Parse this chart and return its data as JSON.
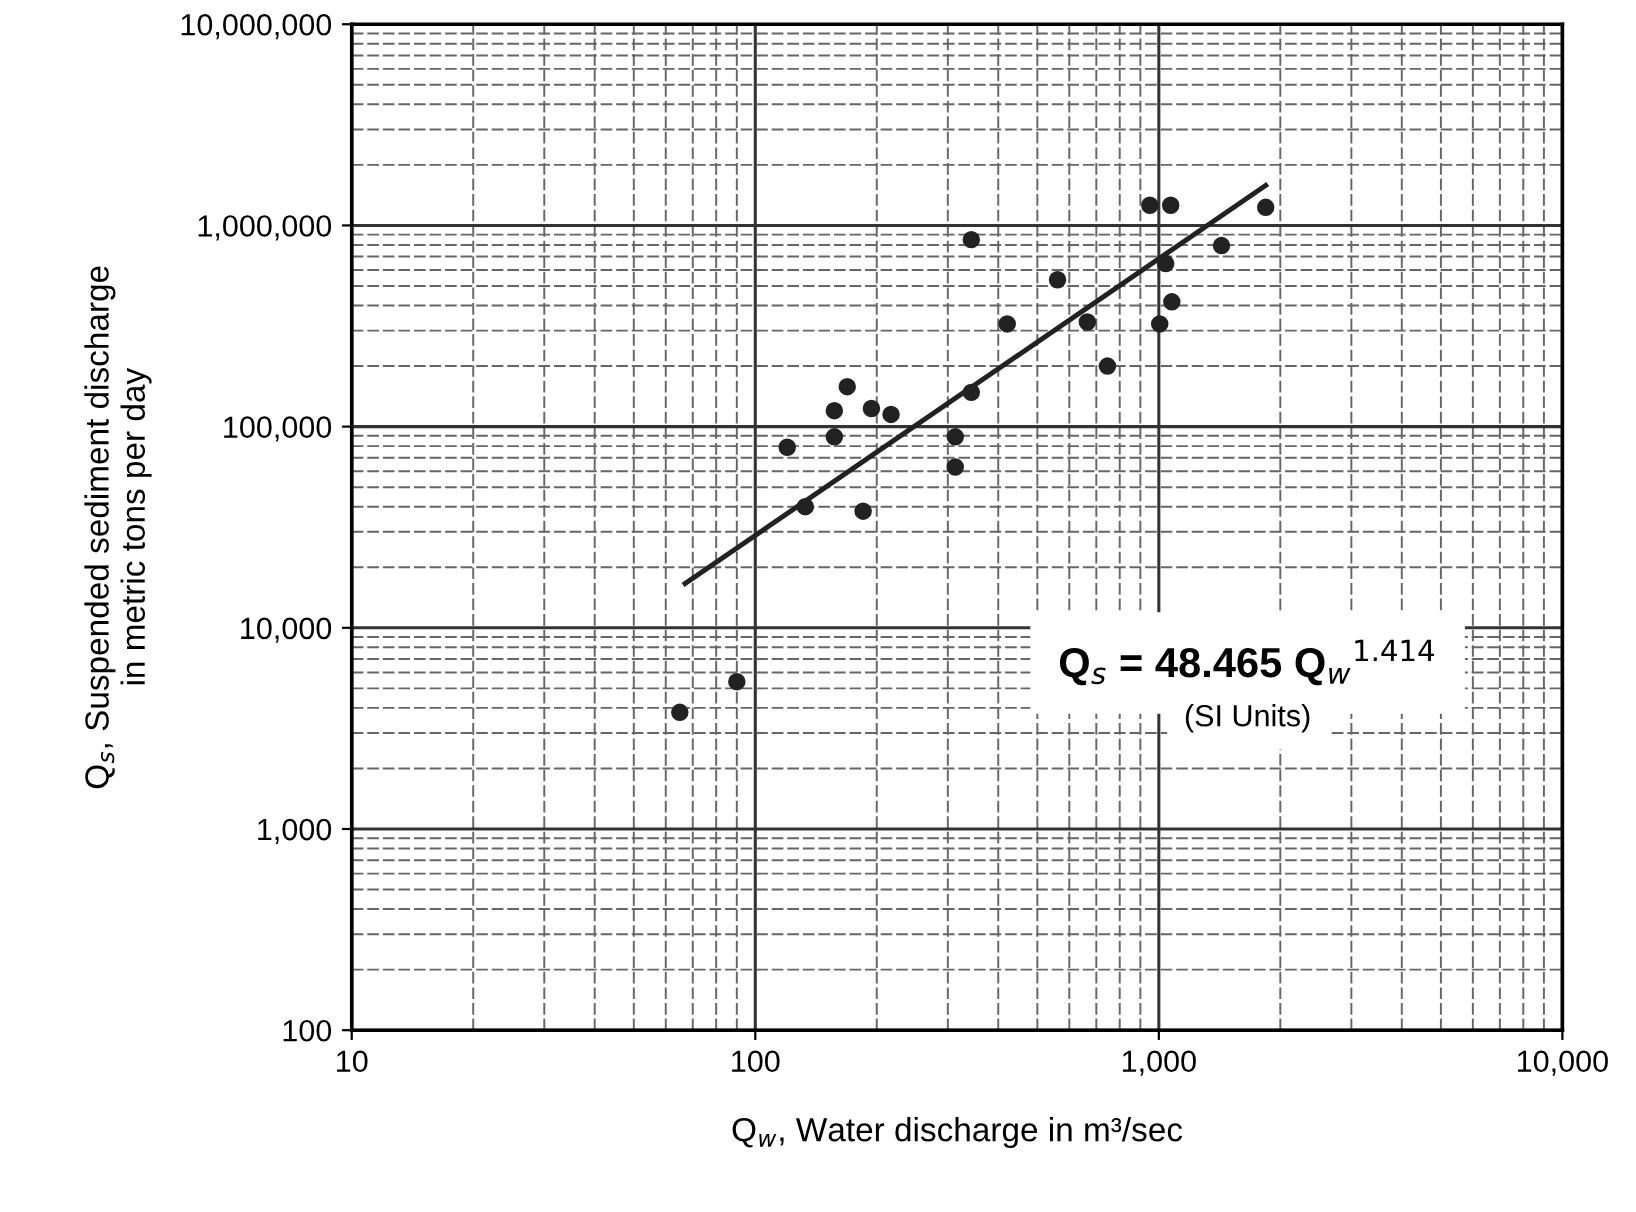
{
  "chart_data": {
    "type": "scatter",
    "xlabel": "Q$_{w}$, Water discharge in m³/sec",
    "ylabel": "Q$_{s}$, Suspended sediment discharge\nin metric tons per day",
    "log": "xy",
    "grid": true,
    "xlim": [
      10,
      10000
    ],
    "xticks": [
      10,
      100,
      {
        "value": 1000,
        "label": "1,000"
      },
      {
        "value": 10000,
        "label": "10,000"
      }
    ],
    "ylim": [
      100,
      10000000
    ],
    "yticks": [
      100,
      {
        "value": 1000,
        "label": "1,000"
      },
      {
        "value": 10000,
        "label": "10,000"
      },
      {
        "value": 100000,
        "label": "100,000"
      },
      {
        "value": 1000000,
        "label": "1,000,000"
      },
      {
        "value": 10000000,
        "label": "10,000,000"
      }
    ],
    "series": [
      {
        "marker": "circle",
        "color": "#222222",
        "x": [
          65,
          90,
          169,
          157,
          194,
          217,
          157,
          120,
          133,
          185,
          313,
          313,
          343,
          950,
          1070,
          1840,
          343,
          1430,
          1040,
          561,
          1077,
          421,
          665,
          1005,
          746
        ],
        "values": [
          3800,
          5400,
          158000,
          120000,
          123000,
          115000,
          89000,
          79000,
          40000,
          38000,
          89000,
          63000,
          148000,
          1260000,
          1260000,
          1230000,
          850000,
          794000,
          646000,
          537000,
          417000,
          324000,
          331000,
          324000,
          200000
        ]
      },
      {
        "type": "line",
        "marker": "none",
        "color": "#222222",
        "x": [
          67,
          1840
        ],
        "values": [
          16600,
          1580000
        ]
      }
    ],
    "annotations": [
      "Q$_{s}$ = 48.465 Q$_{w}$$^{1.414}$",
      "(SI Units)"
    ]
  }
}
